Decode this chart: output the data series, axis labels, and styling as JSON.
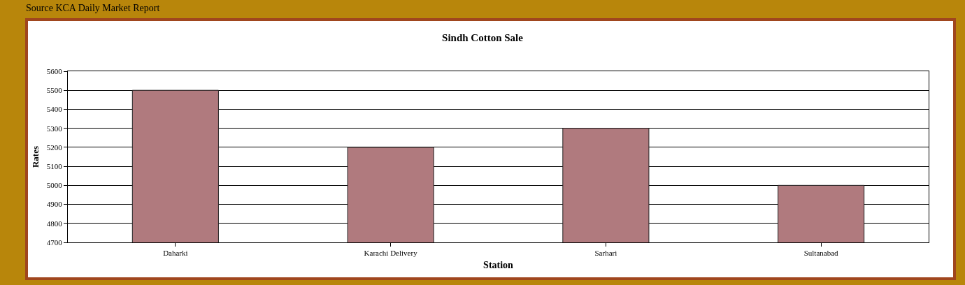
{
  "chart_data": {
    "type": "bar",
    "title": "Sindh Cotton Sale",
    "xlabel": "Station",
    "ylabel": "Rates",
    "annotations": [
      "Source KCA Daily Market Report"
    ],
    "categories": [
      "Daharki",
      "Karachi Delivery",
      "Sarhari",
      "Sultanabad"
    ],
    "values": [
      5500,
      5200,
      5300,
      5000
    ],
    "color": "#b07a7e",
    "ylim": [
      4700,
      5600
    ],
    "yticks": [
      4700,
      4800,
      4900,
      5000,
      5100,
      5200,
      5300,
      5400,
      5500,
      5600
    ],
    "grid": "y",
    "legend": false
  }
}
